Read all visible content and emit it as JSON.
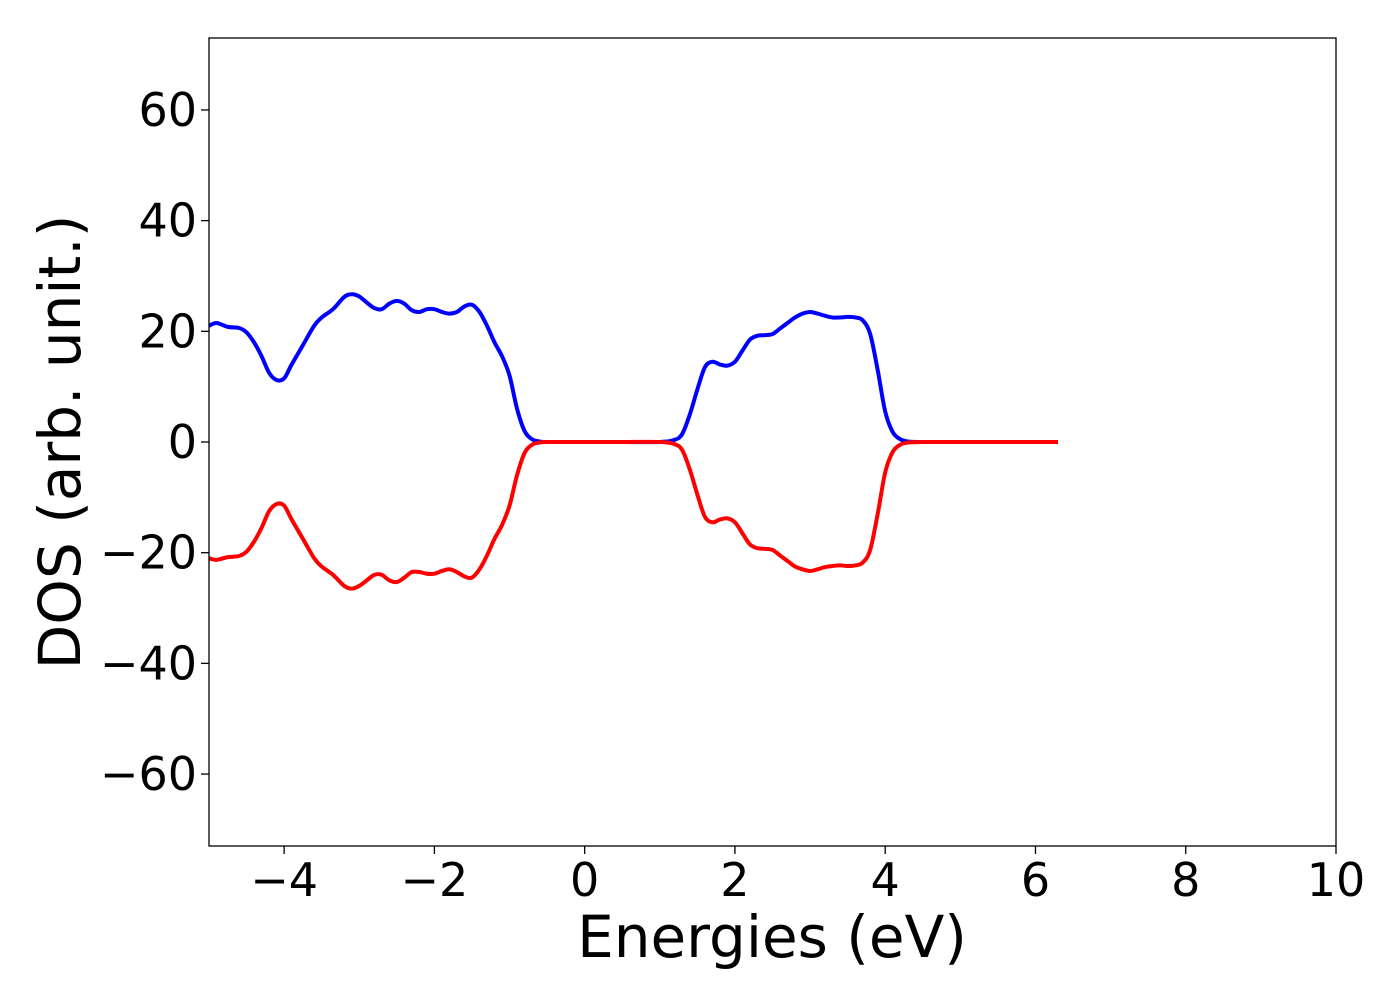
{
  "chart_data": {
    "type": "line",
    "title": "",
    "xlabel": "Energies (eV)",
    "ylabel": "DOS (arb. unit.)",
    "xlim": [
      -5,
      10
    ],
    "ylim": [
      -73,
      73
    ],
    "xticks": [
      -4,
      -2,
      0,
      2,
      4,
      6,
      8,
      10
    ],
    "xtick_labels": [
      "−4",
      "−2",
      "0",
      "2",
      "4",
      "6",
      "8",
      "10"
    ],
    "yticks": [
      -60,
      -40,
      -20,
      0,
      20,
      40,
      60
    ],
    "ytick_labels": [
      "−60",
      "−40",
      "−20",
      "0",
      "20",
      "40",
      "60"
    ],
    "grid": false,
    "legend": "none",
    "series": [
      {
        "color": "#0000ff",
        "x": [
          -5.0,
          -4.9,
          -4.75,
          -4.6,
          -4.5,
          -4.4,
          -4.3,
          -4.2,
          -4.1,
          -4.0,
          -3.9,
          -3.75,
          -3.6,
          -3.5,
          -3.35,
          -3.2,
          -3.1,
          -3.0,
          -2.9,
          -2.8,
          -2.7,
          -2.6,
          -2.5,
          -2.4,
          -2.3,
          -2.2,
          -2.1,
          -2.0,
          -1.9,
          -1.8,
          -1.7,
          -1.6,
          -1.5,
          -1.4,
          -1.3,
          -1.2,
          -1.1,
          -1.0,
          -0.9,
          -0.8,
          -0.7,
          -0.6,
          -0.5,
          0.0,
          0.5,
          1.0,
          1.2,
          1.3,
          1.4,
          1.5,
          1.6,
          1.7,
          1.8,
          1.9,
          2.0,
          2.1,
          2.2,
          2.3,
          2.4,
          2.5,
          2.6,
          2.7,
          2.8,
          2.9,
          3.0,
          3.1,
          3.2,
          3.3,
          3.4,
          3.5,
          3.6,
          3.7,
          3.8,
          3.9,
          4.0,
          4.1,
          4.2,
          4.3,
          4.5,
          5.0,
          5.5,
          6.0,
          6.3
        ],
        "y": [
          21.0,
          21.5,
          20.8,
          20.6,
          19.8,
          18.0,
          15.5,
          12.5,
          11.2,
          11.5,
          14.0,
          17.5,
          21.0,
          22.5,
          24.0,
          26.2,
          26.7,
          26.3,
          25.2,
          24.2,
          24.0,
          25.0,
          25.5,
          25.0,
          23.8,
          23.5,
          24.0,
          24.0,
          23.5,
          23.2,
          23.5,
          24.5,
          24.8,
          23.5,
          21.0,
          18.0,
          15.5,
          12.0,
          6.0,
          2.0,
          0.5,
          0.1,
          0.0,
          0.0,
          0.0,
          0.0,
          0.4,
          1.5,
          5.0,
          9.5,
          13.5,
          14.5,
          14.0,
          13.8,
          14.5,
          16.5,
          18.5,
          19.2,
          19.3,
          19.5,
          20.5,
          21.5,
          22.5,
          23.2,
          23.5,
          23.2,
          22.8,
          22.5,
          22.5,
          22.6,
          22.5,
          22.0,
          19.5,
          13.0,
          5.5,
          1.8,
          0.5,
          0.1,
          0.0,
          0.0,
          0.0,
          0.0,
          0.0
        ]
      },
      {
        "color": "#ff0000",
        "x": [
          -5.0,
          -4.9,
          -4.75,
          -4.6,
          -4.5,
          -4.4,
          -4.3,
          -4.2,
          -4.1,
          -4.0,
          -3.9,
          -3.75,
          -3.6,
          -3.5,
          -3.35,
          -3.2,
          -3.1,
          -3.0,
          -2.9,
          -2.8,
          -2.7,
          -2.6,
          -2.5,
          -2.4,
          -2.3,
          -2.2,
          -2.1,
          -2.0,
          -1.9,
          -1.8,
          -1.7,
          -1.6,
          -1.5,
          -1.4,
          -1.3,
          -1.2,
          -1.1,
          -1.0,
          -0.9,
          -0.8,
          -0.7,
          -0.6,
          -0.5,
          0.0,
          0.5,
          1.0,
          1.2,
          1.3,
          1.4,
          1.5,
          1.6,
          1.7,
          1.8,
          1.9,
          2.0,
          2.1,
          2.2,
          2.3,
          2.4,
          2.5,
          2.6,
          2.7,
          2.8,
          2.9,
          3.0,
          3.1,
          3.2,
          3.3,
          3.4,
          3.5,
          3.6,
          3.7,
          3.8,
          3.9,
          4.0,
          4.1,
          4.2,
          4.3,
          4.5,
          5.0,
          5.5,
          6.0,
          6.3
        ],
        "y": [
          -21.0,
          -21.3,
          -20.8,
          -20.6,
          -19.8,
          -18.0,
          -15.5,
          -12.5,
          -11.2,
          -11.5,
          -14.0,
          -17.5,
          -21.0,
          -22.5,
          -24.0,
          -26.0,
          -26.5,
          -26.0,
          -25.0,
          -24.0,
          -24.0,
          -25.0,
          -25.3,
          -24.5,
          -23.5,
          -23.5,
          -23.8,
          -23.8,
          -23.3,
          -23.0,
          -23.5,
          -24.3,
          -24.5,
          -23.0,
          -20.5,
          -17.5,
          -15.0,
          -11.5,
          -6.0,
          -2.0,
          -0.5,
          -0.1,
          0.0,
          0.0,
          0.0,
          0.0,
          -0.4,
          -1.5,
          -5.0,
          -9.5,
          -13.5,
          -14.5,
          -14.0,
          -13.8,
          -14.5,
          -16.5,
          -18.5,
          -19.2,
          -19.3,
          -19.5,
          -20.5,
          -21.5,
          -22.5,
          -23.0,
          -23.3,
          -23.0,
          -22.6,
          -22.4,
          -22.3,
          -22.4,
          -22.3,
          -21.8,
          -19.5,
          -13.0,
          -5.5,
          -1.8,
          -0.5,
          -0.1,
          0.0,
          0.0,
          0.0,
          0.0,
          0.0
        ]
      }
    ]
  }
}
